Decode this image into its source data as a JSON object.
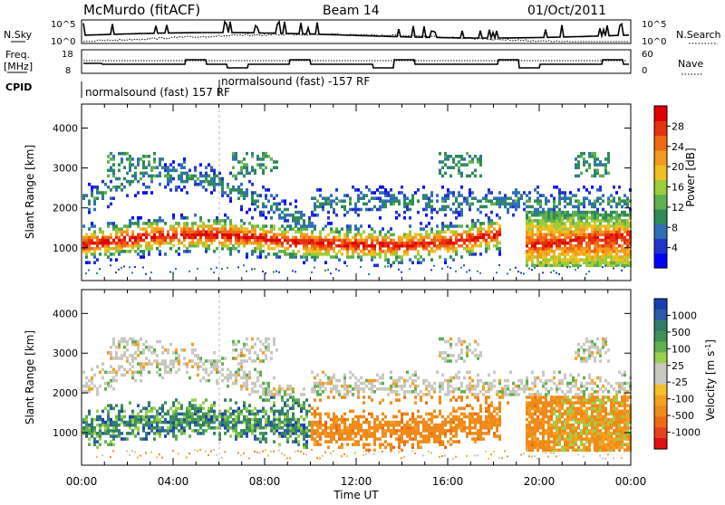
{
  "header": {
    "title": "McMurdo (fitACF)",
    "beam": "Beam 14",
    "date": "01/Oct/2011"
  },
  "panels": {
    "nsky_label": "N.Sky",
    "nsearch_label": "N.Search",
    "nsky_ticks": [
      "10^5",
      "10^0"
    ],
    "nsearch_ticks": [
      "10^5",
      "10^0"
    ],
    "freq_label_line1": "Freq.",
    "freq_label_line2": "[MHz]",
    "freq_ticks": [
      "18",
      "8"
    ],
    "nave_label": "Nave",
    "nave_ticks": [
      "60",
      "0"
    ],
    "cpid_label": "CPID",
    "cpid_text_1": "normalsound (fast) 157 RF",
    "cpid_text_2": "normalsound (fast) -157 RF"
  },
  "chart_data": [
    {
      "type": "heatmap",
      "name": "power",
      "ylabel": "Slant Range [km]",
      "xlabel": "Time UT",
      "x_ticks": [
        "00:00",
        "04:00",
        "08:00",
        "12:00",
        "16:00",
        "20:00",
        "00:00"
      ],
      "x_range_hours": [
        0,
        24
      ],
      "y_ticks": [
        1000,
        2000,
        3000,
        4000
      ],
      "y_range_km": [
        180,
        4600
      ],
      "colorbar_label": "Power [dB]",
      "colorbar_ticks": [
        "4",
        "8",
        "12",
        "16",
        "20",
        "24",
        "28"
      ],
      "colorbar_colors": [
        "#0000ff",
        "#2233cc",
        "#2f6fb8",
        "#2e8b57",
        "#5fb04e",
        "#9ccc3a",
        "#f0c020",
        "#f59a1f",
        "#f06a14",
        "#e8320e",
        "#e00000"
      ]
    },
    {
      "type": "heatmap",
      "name": "velocity",
      "ylabel": "Slant Range [km]",
      "xlabel": "Time UT",
      "x_ticks": [
        "00:00",
        "04:00",
        "08:00",
        "12:00",
        "16:00",
        "20:00",
        "00:00"
      ],
      "x_range_hours": [
        0,
        24
      ],
      "y_ticks": [
        1000,
        2000,
        3000,
        4000
      ],
      "y_range_km": [
        180,
        4600
      ],
      "colorbar_label": "Velocity [m s",
      "colorbar_label_sup": "-1",
      "colorbar_label_end": "]",
      "colorbar_ticks": [
        "1000",
        "500",
        "100",
        "25",
        "-25",
        "-100",
        "-500",
        "-1000"
      ],
      "colorbar_colors": [
        "#1a3fb5",
        "#2a5aa8",
        "#2e7d6a",
        "#3f8f5a",
        "#5fb04e",
        "#9ad04a",
        "#c8c8c0",
        "#c8c8c0",
        "#f5c02a",
        "#f5a01f",
        "#f08a1a",
        "#f06a14",
        "#e8401a",
        "#e01010"
      ]
    }
  ],
  "x_axis_label": "Time UT",
  "x_ticks": [
    "00:00",
    "04:00",
    "08:00",
    "12:00",
    "16:00",
    "20:00",
    "00:00"
  ]
}
